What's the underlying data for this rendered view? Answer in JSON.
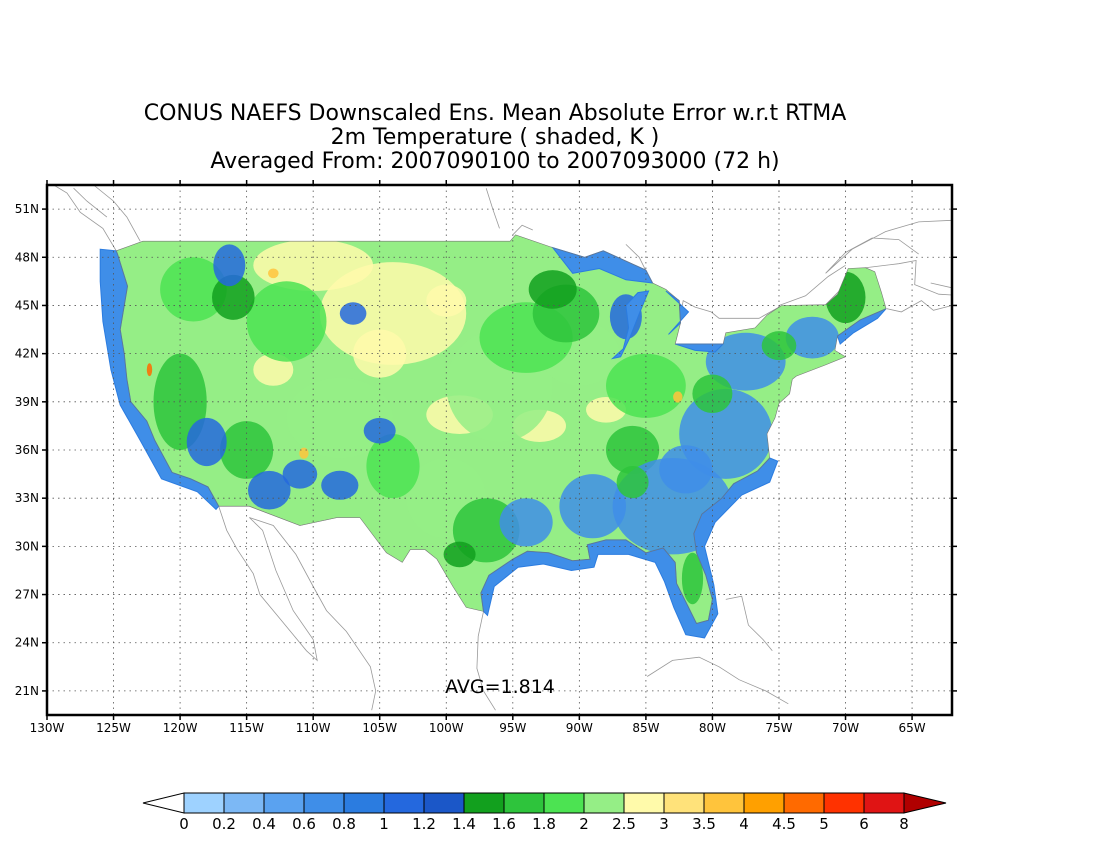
{
  "title": {
    "line1": "CONUS NAEFS Downscaled Ens. Mean Absolute Error w.r.t RTMA",
    "line2": "2m Temperature ( shaded, K )",
    "line3": "Averaged From: 2007090100 to 2007093000 (72 h)"
  },
  "annotation": {
    "avg_text": "AVG=1.814"
  },
  "map": {
    "lon_range": [
      -130,
      -62
    ],
    "lat_range": [
      19.5,
      52.5
    ],
    "grid": "dotted",
    "lat_ticks": [
      {
        "value": 21,
        "label": "21N"
      },
      {
        "value": 24,
        "label": "24N"
      },
      {
        "value": 27,
        "label": "27N"
      },
      {
        "value": 30,
        "label": "30N"
      },
      {
        "value": 33,
        "label": "33N"
      },
      {
        "value": 36,
        "label": "36N"
      },
      {
        "value": 39,
        "label": "39N"
      },
      {
        "value": 42,
        "label": "42N"
      },
      {
        "value": 45,
        "label": "45N"
      },
      {
        "value": 48,
        "label": "48N"
      },
      {
        "value": 51,
        "label": "51N"
      }
    ],
    "lon_ticks": [
      {
        "value": -130,
        "label": "130W"
      },
      {
        "value": -125,
        "label": "125W"
      },
      {
        "value": -120,
        "label": "120W"
      },
      {
        "value": -115,
        "label": "115W"
      },
      {
        "value": -110,
        "label": "110W"
      },
      {
        "value": -105,
        "label": "105W"
      },
      {
        "value": -100,
        "label": "100W"
      },
      {
        "value": -95,
        "label": "95W"
      },
      {
        "value": -90,
        "label": "90W"
      },
      {
        "value": -85,
        "label": "85W"
      },
      {
        "value": -80,
        "label": "80W"
      },
      {
        "value": -75,
        "label": "75W"
      },
      {
        "value": -70,
        "label": "70W"
      },
      {
        "value": -65,
        "label": "65W"
      }
    ]
  },
  "colorbar": {
    "labels": [
      "0",
      "0.2",
      "0.4",
      "0.6",
      "0.8",
      "1",
      "1.2",
      "1.4",
      "1.6",
      "1.8",
      "2",
      "2.5",
      "3",
      "3.5",
      "4",
      "4.5",
      "5",
      "6",
      "8"
    ],
    "colors": [
      "#9ed2ff",
      "#7cb8f5",
      "#5aa2f0",
      "#3f8ee8",
      "#2b7ce0",
      "#2468de",
      "#1b57c8",
      "#12a01e",
      "#2ec43c",
      "#4ce352",
      "#95ee86",
      "#fffaaa",
      "#ffe27a",
      "#ffc43c",
      "#ffa000",
      "#ff6a00",
      "#ff3200",
      "#e01414"
    ],
    "under_color": "#ffffff",
    "over_color": "#b00000"
  }
}
